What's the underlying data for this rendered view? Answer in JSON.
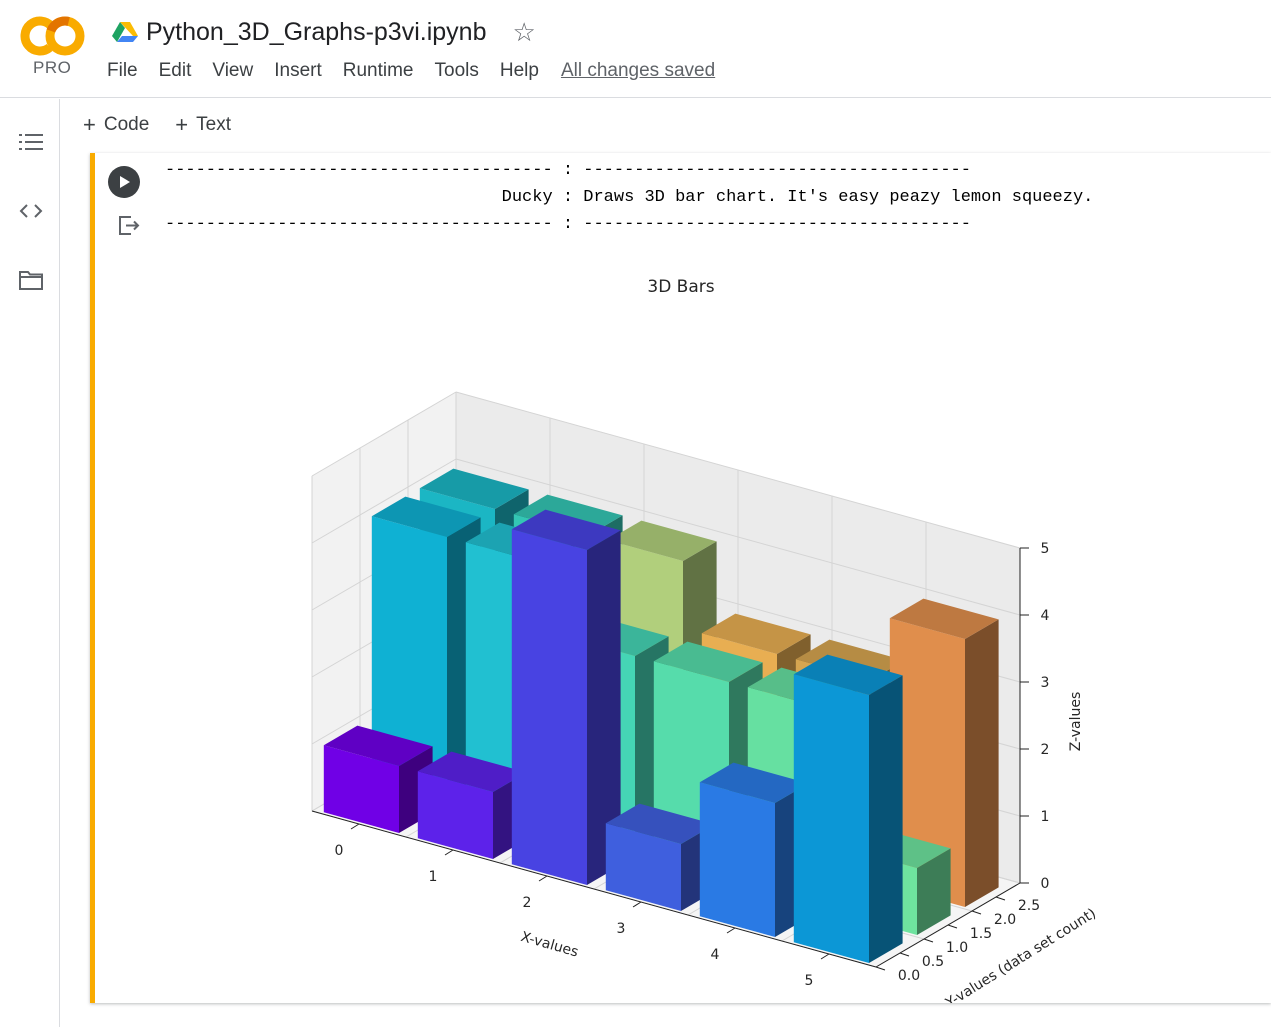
{
  "header": {
    "logo_text": "PRO",
    "doc_title": "Python_3D_Graphs-p3vi.ipynb",
    "menu": [
      "File",
      "Edit",
      "View",
      "Insert",
      "Runtime",
      "Tools",
      "Help"
    ],
    "save_status": "All changes saved"
  },
  "left_rail": {
    "icons": [
      "table-of-contents-icon",
      "code-snippets-icon",
      "files-folder-icon"
    ]
  },
  "toolbar": {
    "code_label": "Code",
    "text_label": "Text"
  },
  "cell": {
    "output_lines": [
      "-------------------------------------- : --------------------------------------",
      "                                 Ducky : Draws 3D bar chart. It's easy peazy lemon squeezy.",
      "-------------------------------------- : --------------------------------------"
    ]
  },
  "colors": {
    "accent_cell_border": "#f9ab00",
    "logo_orange": "#f9ab00",
    "logo_orange_dark": "#e37400"
  },
  "chart_data": {
    "type": "bar3d",
    "title": "3D Bars",
    "xlabel": "X-values",
    "ylabel": "Y-values (data set count)",
    "zlabel": "Z-values",
    "x_ticks": [
      "0",
      "1",
      "2",
      "3",
      "4",
      "5"
    ],
    "y_ticks": [
      "0.0",
      "0.5",
      "1.0",
      "1.5",
      "2.0",
      "2.5"
    ],
    "z_ticks": [
      "0",
      "1",
      "2",
      "3",
      "4",
      "5"
    ],
    "zlim": [
      0,
      5
    ],
    "grid": true,
    "series": [
      {
        "y": 0,
        "values": [
          1,
          1,
          5,
          1,
          2,
          4
        ],
        "colors": [
          "#7000e6",
          "#5d22ea",
          "#4843e2",
          "#3f5fde",
          "#2a7ae4",
          "#0c97d6"
        ]
      },
      {
        "y": 1,
        "values": [
          4,
          4,
          3,
          3,
          3,
          1
        ],
        "colors": [
          "#0fb1d3",
          "#21c0d1",
          "#45d5b5",
          "#56dcab",
          "#66e0a1",
          "#6fe39f"
        ]
      },
      {
        "y": 2,
        "values": [
          4,
          4,
          4,
          3,
          3,
          4
        ],
        "colors": [
          "#1bb6c4",
          "#34c6b4",
          "#b1cf7c",
          "#e8ae52",
          "#d6a550",
          "#e08e4c"
        ]
      }
    ]
  }
}
